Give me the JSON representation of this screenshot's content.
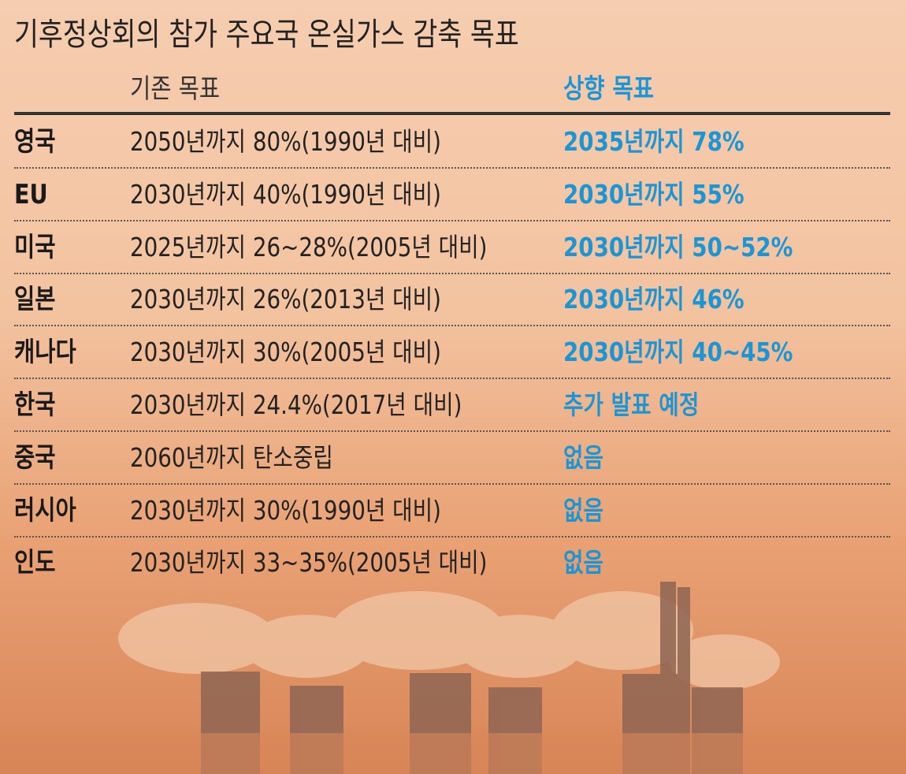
{
  "header": {
    "title": "기후정상회의 참가 주요국 온실가스 감축 목표"
  },
  "table": {
    "columns": [
      "기존 목표",
      "상향 목표"
    ],
    "rows": [
      [
        "영국",
        "2050년까지 80%(1990년 대비)",
        "2035년까지 78%"
      ],
      [
        "EU",
        "2030년까지 40%(1990년 대비)",
        "2030년까지 55%"
      ],
      [
        "미국",
        "2025년까지 26~28%(2005년 대비)",
        "2030년까지 50~52%"
      ],
      [
        "일본",
        "2030년까지 26%(2013년 대비)",
        "2030년까지 46%"
      ],
      [
        "캐나다",
        "2030년까지 30%(2005년 대비)",
        "2030년까지 40~45%"
      ],
      [
        "한국",
        "2030년까지 24.4%(2017년 대비)",
        "추가 발표 예정"
      ],
      [
        "중국",
        "2060년까지 탄소중립",
        "없음"
      ],
      [
        "러시아",
        "2030년까지 30%(1990년 대비)",
        "없음"
      ],
      [
        "인도",
        "2030년까지 33~35%(2005년 대비)",
        "없음"
      ]
    ]
  }
}
